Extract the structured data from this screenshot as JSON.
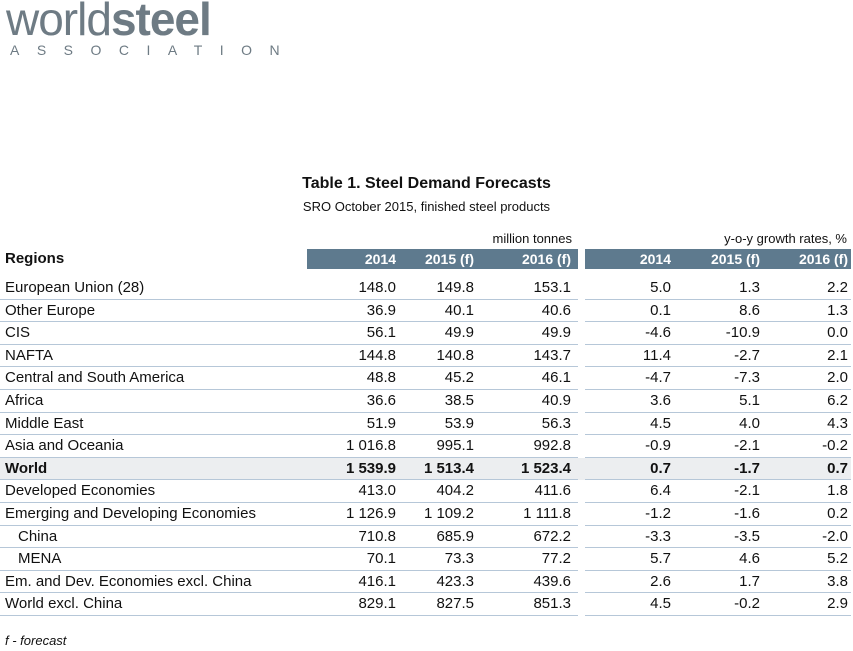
{
  "logo": {
    "name_light": "world",
    "name_bold": "steel",
    "tagline": "ASSOCIATION"
  },
  "table": {
    "title": "Table 1. Steel Demand Forecasts",
    "subtitle": "SRO October 2015, finished steel products",
    "units": [
      "million tonnes",
      "y-o-y growth rates, %"
    ],
    "header": [
      "Regions",
      "2014",
      "2015 (f)",
      "2016 (f)",
      "2014",
      "2015 (f)",
      "2016 (f)"
    ],
    "rows": [
      [
        "European Union (28)",
        "148.0",
        "149.8",
        "153.1",
        "5.0",
        "1.3",
        "2.2"
      ],
      [
        "Other Europe",
        "36.9",
        "40.1",
        "40.6",
        "0.1",
        "8.6",
        "1.3"
      ],
      [
        "CIS",
        "56.1",
        "49.9",
        "49.9",
        "-4.6",
        "-10.9",
        "0.0"
      ],
      [
        "NAFTA",
        "144.8",
        "140.8",
        "143.7",
        "11.4",
        "-2.7",
        "2.1"
      ],
      [
        "Central and South America",
        "48.8",
        "45.2",
        "46.1",
        "-4.7",
        "-7.3",
        "2.0"
      ],
      [
        "Africa",
        "36.6",
        "38.5",
        "40.9",
        "3.6",
        "5.1",
        "6.2"
      ],
      [
        "Middle East",
        "51.9",
        "53.9",
        "56.3",
        "4.5",
        "4.0",
        "4.3"
      ],
      [
        "Asia and Oceania",
        "1 016.8",
        "995.1",
        "992.8",
        "-0.9",
        "-2.1",
        "-0.2"
      ],
      [
        "World",
        "1 539.9",
        "1 513.4",
        "1 523.4",
        "0.7",
        "-1.7",
        "0.7"
      ],
      [
        "Developed Economies",
        "413.0",
        "404.2",
        "411.6",
        "6.4",
        "-2.1",
        "1.8"
      ],
      [
        "Emerging and Developing Economies",
        "1 126.9",
        "1 109.2",
        "1 111.8",
        "-1.2",
        "-1.6",
        "0.2"
      ],
      [
        "China",
        "710.8",
        "685.9",
        "672.2",
        "-3.3",
        "-3.5",
        "-2.0"
      ],
      [
        "MENA",
        "70.1",
        "73.3",
        "77.2",
        "5.7",
        "4.6",
        "5.2"
      ],
      [
        "Em. and Dev. Economies excl. China",
        "416.1",
        "423.3",
        "439.6",
        "2.6",
        "1.7",
        "3.8"
      ],
      [
        "World excl. China",
        "829.1",
        "827.5",
        "851.3",
        "4.5",
        "-0.2",
        "2.9"
      ]
    ]
  },
  "footnote": "f - forecast"
}
